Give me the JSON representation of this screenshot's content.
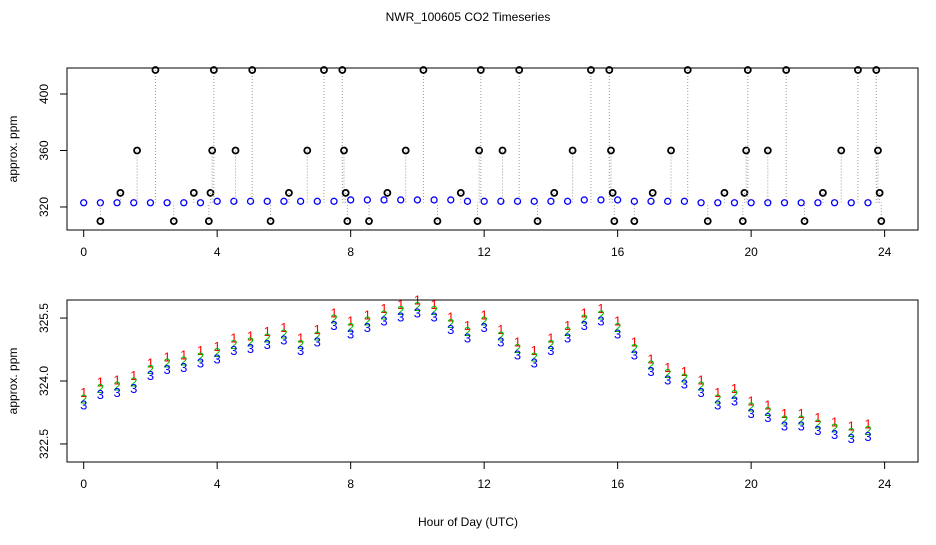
{
  "chart_data": [
    {
      "type": "scatter",
      "title": "NWR_100605  CO2 Timeseries",
      "y_label": "approx. ppm",
      "xlim": [
        -0.5,
        25
      ],
      "ylim": [
        303.7,
        418.4
      ],
      "xticks": [
        0,
        4,
        8,
        12,
        16,
        20,
        24
      ],
      "yticks": [
        320,
        360,
        400
      ],
      "series": [
        {
          "color": "#0000ff",
          "x": [
            0,
            0.5,
            1,
            1.5,
            2,
            2.5,
            3,
            3.5,
            4,
            4.5,
            5,
            5.5,
            6,
            6.5,
            7,
            7.5,
            8,
            8.5,
            9,
            9.5,
            10,
            10.5,
            11,
            11.5,
            12,
            12.5,
            13,
            13.5,
            14,
            14.5,
            15,
            15.5,
            16,
            16.5,
            17,
            17.5,
            18,
            18.5,
            19,
            19.5,
            20,
            20.5,
            21,
            21.5,
            22,
            22.5,
            23,
            23.5
          ],
          "values": [
            323,
            323,
            323,
            323,
            323,
            323,
            323,
            323,
            324,
            324,
            324,
            324,
            324,
            324,
            324,
            324,
            325,
            325,
            325,
            325,
            325,
            325,
            325,
            324,
            324,
            324,
            324,
            324,
            324,
            324,
            325,
            325,
            325,
            324,
            324,
            324,
            324,
            323,
            323,
            323,
            323,
            323,
            323,
            323,
            323,
            323,
            323,
            323
          ]
        },
        {
          "color": "#000000",
          "x": [
            0.5,
            1.1,
            1.6,
            2.15,
            2.7,
            3.3,
            3.75,
            3.8,
            3.85,
            3.9,
            4.55,
            5.05,
            5.6,
            6.15,
            6.7,
            7.2,
            7.75,
            7.8,
            7.85,
            7.9,
            8.55,
            9.1,
            9.65,
            10.18,
            10.6,
            11.3,
            11.8,
            11.85,
            11.9,
            12.55,
            13.05,
            13.6,
            14.1,
            14.65,
            15.2,
            15.75,
            15.8,
            15.85,
            15.9,
            16.5,
            17.05,
            17.6,
            18.1,
            18.7,
            19.2,
            19.75,
            19.8,
            19.85,
            19.9,
            20.5,
            21.05,
            21.6,
            22.15,
            22.7,
            23.2,
            23.75,
            23.8,
            23.85,
            23.9
          ],
          "values": [
            310,
            330,
            360,
            417,
            310,
            330,
            310,
            330,
            360,
            417,
            360,
            417,
            310,
            330,
            360,
            417,
            417,
            360,
            330,
            310,
            310,
            330,
            360,
            417,
            310,
            330,
            310,
            360,
            417,
            360,
            417,
            310,
            330,
            360,
            417,
            417,
            360,
            330,
            310,
            310,
            330,
            360,
            417,
            310,
            330,
            310,
            330,
            360,
            417,
            360,
            417,
            310,
            330,
            360,
            417,
            417,
            360,
            330,
            310
          ]
        }
      ]
    },
    {
      "type": "scatter",
      "y_label": "approx. ppm",
      "x_label": "Hour of Day (UTC)",
      "xlim": [
        -0.5,
        25
      ],
      "ylim": [
        322.07,
        325.93
      ],
      "xticks": [
        0,
        4,
        8,
        12,
        16,
        20,
        24
      ],
      "yticks": [
        322.5,
        {
          "value": 324,
          "label": "324.0"
        },
        325.5
      ],
      "x": [
        0,
        0.5,
        1,
        1.5,
        2,
        2.5,
        3,
        3.5,
        4,
        4.5,
        5,
        5.5,
        6,
        6.5,
        7,
        7.5,
        8,
        8.5,
        9,
        9.5,
        10,
        10.5,
        11,
        11.5,
        12,
        12.5,
        13,
        13.5,
        14,
        14.5,
        15,
        15.5,
        16,
        16.5,
        17,
        17.5,
        18,
        18.5,
        19,
        19.5,
        20,
        20.5,
        21,
        21.5,
        22,
        22.5,
        23,
        23.5
      ],
      "series": [
        {
          "symbol": "1",
          "color": "#ff0000",
          "values": [
            323.7,
            323.95,
            324.0,
            324.1,
            324.4,
            324.55,
            324.6,
            324.7,
            324.8,
            325.0,
            325.05,
            325.15,
            325.25,
            325.0,
            325.2,
            325.6,
            325.4,
            325.55,
            325.7,
            325.8,
            325.9,
            325.8,
            325.5,
            325.3,
            325.55,
            325.2,
            324.9,
            324.7,
            325.0,
            325.3,
            325.6,
            325.7,
            325.4,
            324.9,
            324.5,
            324.3,
            324.2,
            324.0,
            323.7,
            323.8,
            323.5,
            323.4,
            323.2,
            323.2,
            323.1,
            323.0,
            322.9,
            322.95
          ]
        },
        {
          "symbol": "2",
          "color": "#00bb00",
          "values": [
            323.55,
            323.8,
            323.85,
            323.95,
            324.25,
            324.4,
            324.45,
            324.55,
            324.65,
            324.85,
            324.9,
            325.0,
            325.1,
            324.85,
            325.05,
            325.45,
            325.25,
            325.4,
            325.55,
            325.65,
            325.75,
            325.65,
            325.35,
            325.15,
            325.4,
            325.05,
            324.75,
            324.55,
            324.85,
            325.15,
            325.45,
            325.55,
            325.25,
            324.75,
            324.35,
            324.15,
            324.05,
            323.85,
            323.55,
            323.65,
            323.35,
            323.25,
            323.05,
            323.05,
            322.95,
            322.85,
            322.75,
            322.8
          ]
        },
        {
          "symbol": "3",
          "color": "#0000ff",
          "values": [
            323.4,
            323.65,
            323.7,
            323.8,
            324.1,
            324.25,
            324.3,
            324.4,
            324.5,
            324.7,
            324.75,
            324.85,
            324.95,
            324.7,
            324.9,
            325.3,
            325.1,
            325.25,
            325.4,
            325.5,
            325.6,
            325.5,
            325.2,
            325.0,
            325.25,
            324.9,
            324.6,
            324.4,
            324.7,
            325.0,
            325.3,
            325.4,
            325.1,
            324.6,
            324.2,
            324.0,
            323.9,
            323.7,
            323.4,
            323.5,
            323.2,
            323.1,
            322.9,
            322.9,
            322.8,
            322.7,
            322.6,
            322.65
          ]
        }
      ]
    }
  ]
}
